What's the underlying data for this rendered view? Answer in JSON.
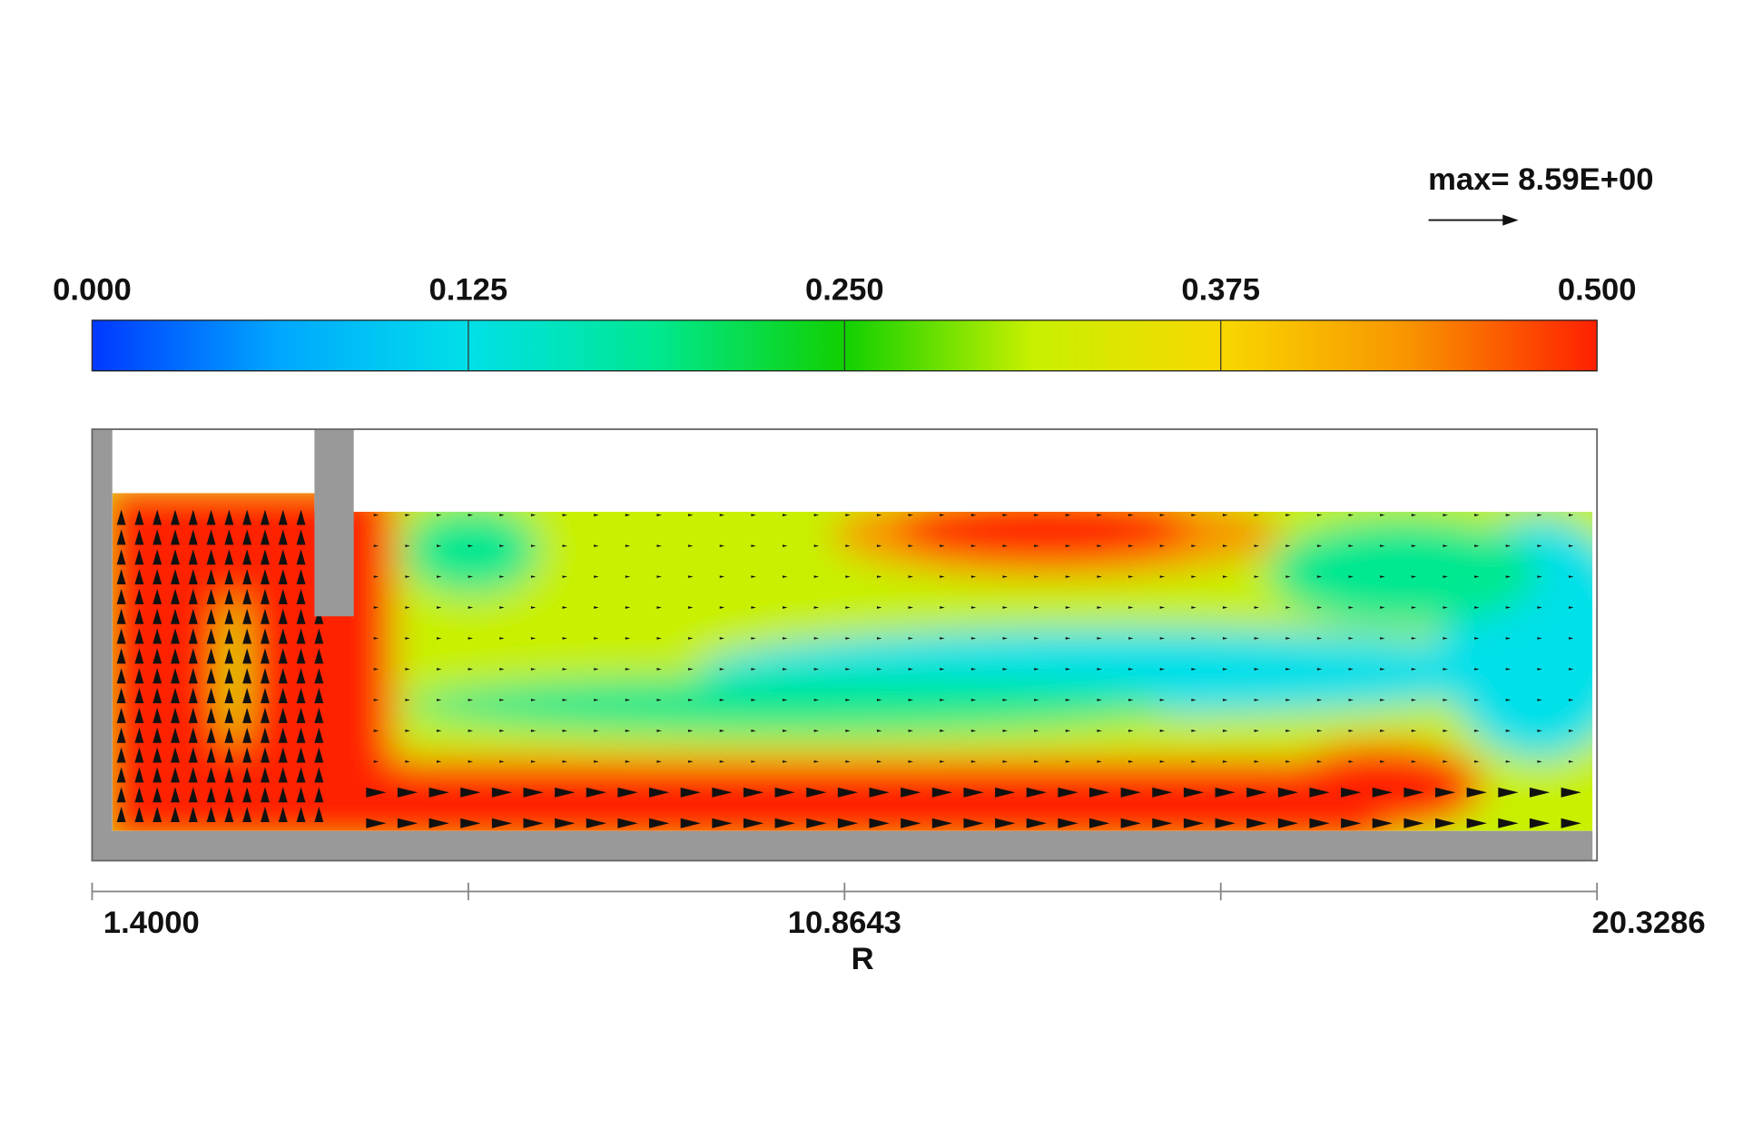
{
  "chart_data": {
    "type": "contour",
    "annotation": "max= 8.59E+00",
    "colorbar": {
      "clim": [
        0,
        0.5
      ],
      "ticks": [
        {
          "value": 0,
          "label": "0.000"
        },
        {
          "value": 0.125,
          "label": "0.125"
        },
        {
          "value": 0.25,
          "label": "0.250"
        },
        {
          "value": 0.375,
          "label": "0.375"
        },
        {
          "value": 0.5,
          "label": "0.500"
        }
      ],
      "colormap": [
        "#0038ff",
        "#00a8ff",
        "#00e0e8",
        "#00e890",
        "#10d000",
        "#c8f000",
        "#f8d800",
        "#f89400",
        "#ff2000"
      ]
    },
    "xlabel": "R",
    "xlim": [
      1.4,
      20.3286
    ],
    "xticks": [
      {
        "value": 1.4,
        "label": "1.4000"
      },
      {
        "value": 6.13215,
        "label": null
      },
      {
        "value": 10.8643,
        "label": "10.8643"
      },
      {
        "value": 15.59645,
        "label": null
      },
      {
        "value": 20.3286,
        "label": "20.3286"
      }
    ]
  }
}
